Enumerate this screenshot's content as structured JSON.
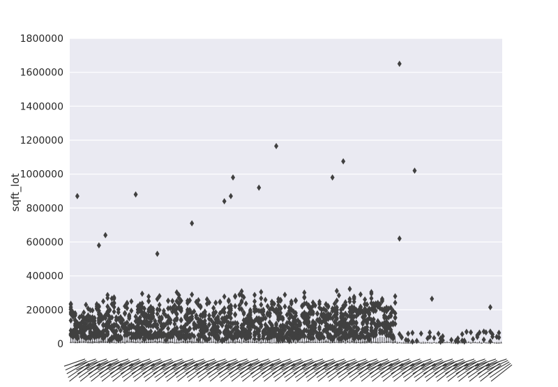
{
  "chart_data": {
    "type": "box",
    "title": "",
    "xlabel": "",
    "ylabel": "sqft_lot",
    "ylim": [
      0,
      1800000
    ],
    "yticks": [
      0,
      200000,
      400000,
      600000,
      800000,
      1000000,
      1200000,
      1400000,
      1600000,
      1800000
    ],
    "ytick_labels": [
      "0",
      "200000",
      "400000",
      "600000",
      "800000",
      "1000000",
      "1200000",
      "1400000",
      "1600000",
      "1800000"
    ],
    "grid": true,
    "category_count": 200,
    "box_color": "#4c4c4c",
    "flier_color": "#404040",
    "background_color": "#eaeaf2",
    "notable_outliers": [
      {
        "category_index": 3,
        "value": 870000
      },
      {
        "category_index": 13,
        "value": 580000
      },
      {
        "category_index": 16,
        "value": 640000
      },
      {
        "category_index": 30,
        "value": 880000
      },
      {
        "category_index": 40,
        "value": 530000
      },
      {
        "category_index": 56,
        "value": 710000
      },
      {
        "category_index": 71,
        "value": 840000
      },
      {
        "category_index": 74,
        "value": 870000
      },
      {
        "category_index": 75,
        "value": 980000
      },
      {
        "category_index": 87,
        "value": 920000
      },
      {
        "category_index": 95,
        "value": 1165000
      },
      {
        "category_index": 121,
        "value": 980000
      },
      {
        "category_index": 126,
        "value": 1075000
      },
      {
        "category_index": 152,
        "value": 1650000
      },
      {
        "category_index": 152,
        "value": 620000
      },
      {
        "category_index": 159,
        "value": 1020000
      },
      {
        "category_index": 167,
        "value": 265000
      },
      {
        "category_index": 194,
        "value": 215000
      }
    ]
  }
}
